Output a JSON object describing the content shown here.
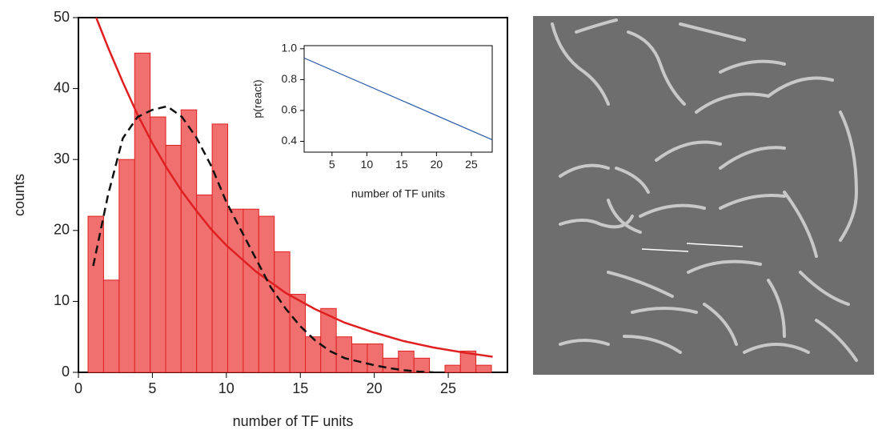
{
  "chart_data": [
    {
      "type": "histogram",
      "xlabel": "number of TF units",
      "ylabel": "counts",
      "bins": [
        0.65,
        1.7,
        2.75,
        3.8,
        4.85,
        5.9,
        6.94,
        7.99,
        9.04,
        10.09,
        11.14,
        12.19,
        13.24,
        14.29,
        15.34,
        16.38,
        17.43,
        18.48,
        19.53,
        20.58,
        21.63,
        22.68,
        23.73,
        24.78,
        25.82,
        26.87,
        27.92
      ],
      "values": [
        22,
        13,
        30,
        45,
        36,
        32,
        37,
        25,
        35,
        23,
        23,
        22,
        17,
        11,
        5,
        9,
        5,
        4,
        4,
        2,
        3,
        2,
        0,
        1,
        3,
        1
      ],
      "color": "#f07070",
      "edgecolor": "#e02020",
      "xlim": [
        0,
        29
      ],
      "ylim": [
        0,
        50
      ],
      "xticks": [
        0,
        5,
        10,
        15,
        20,
        25
      ],
      "yticks": [
        0,
        10,
        20,
        30,
        40,
        50
      ],
      "series": [
        {
          "color": "#e02020",
          "dashed": false,
          "x": [
            1.2,
            2,
            3,
            4,
            5,
            6,
            7,
            8,
            9,
            10,
            12,
            14,
            16,
            18,
            20,
            22,
            24,
            26,
            28
          ],
          "values": [
            50,
            45.8,
            40.9,
            36.3,
            32.3,
            28.7,
            25.5,
            22.7,
            20.1,
            17.9,
            14.2,
            11.2,
            8.9,
            7.0,
            5.6,
            4.4,
            3.5,
            2.8,
            2.2
          ]
        },
        {
          "color": "#111111",
          "dashed": true,
          "x": [
            1,
            2,
            3,
            4,
            5,
            6,
            7,
            8,
            9,
            10,
            11,
            12,
            13,
            14,
            15,
            16,
            17,
            18,
            19,
            20,
            21,
            22,
            23,
            24
          ],
          "values": [
            15,
            25,
            33,
            36,
            37,
            37.5,
            36,
            33,
            29,
            24,
            20,
            16,
            12,
            9,
            6.5,
            4.5,
            3,
            2,
            1.5,
            1,
            0.6,
            0.3,
            0.1,
            0
          ]
        }
      ]
    },
    {
      "type": "line",
      "xlabel": "number of TF units",
      "ylabel": "p(react)",
      "x": [
        1,
        28
      ],
      "values": [
        0.94,
        0.41
      ],
      "color": "#2a5aa8",
      "xlim": [
        1,
        28
      ],
      "ylim": [
        0.33,
        1.02
      ],
      "xticks": [
        5,
        10,
        15,
        20,
        25
      ],
      "yticks": [
        0.4,
        0.6,
        0.8,
        {
          "value": 1,
          "label": "1.0"
        }
      ]
    }
  ]
}
